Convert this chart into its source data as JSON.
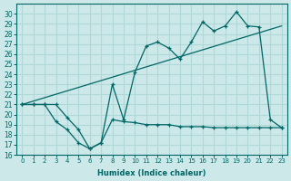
{
  "xlabel": "Humidex (Indice chaleur)",
  "x": [
    0,
    1,
    2,
    3,
    4,
    5,
    6,
    7,
    8,
    9,
    10,
    11,
    12,
    13,
    14,
    15,
    16,
    17,
    18,
    19,
    20,
    21,
    22,
    23
  ],
  "humidex": [
    21.0,
    21.0,
    21.0,
    21.0,
    19.7,
    18.5,
    16.6,
    17.2,
    23.0,
    19.5,
    24.2,
    26.8,
    27.2,
    26.6,
    25.5,
    27.2,
    29.2,
    28.3,
    28.8,
    30.2,
    28.8,
    28.7,
    19.5,
    18.7
  ],
  "minline": [
    21.0,
    21.0,
    21.0,
    19.3,
    18.5,
    17.2,
    16.6,
    17.2,
    19.5,
    19.3,
    19.2,
    19.0,
    19.0,
    19.0,
    18.8,
    18.8,
    18.8,
    18.7,
    18.7,
    18.7,
    18.7,
    18.7,
    18.7,
    18.7
  ],
  "trend_x": [
    0,
    23
  ],
  "trend_y": [
    21.0,
    28.8
  ],
  "color": "#006666",
  "bg_color": "#cce8e8",
  "grid_color": "#b0d8d8",
  "ylim": [
    16,
    31
  ],
  "yticks": [
    16,
    17,
    18,
    19,
    20,
    21,
    22,
    23,
    24,
    25,
    26,
    27,
    28,
    29,
    30
  ],
  "xticks": [
    0,
    1,
    2,
    3,
    4,
    5,
    6,
    7,
    8,
    9,
    10,
    11,
    12,
    13,
    14,
    15,
    16,
    17,
    18,
    19,
    20,
    21,
    22,
    23
  ]
}
